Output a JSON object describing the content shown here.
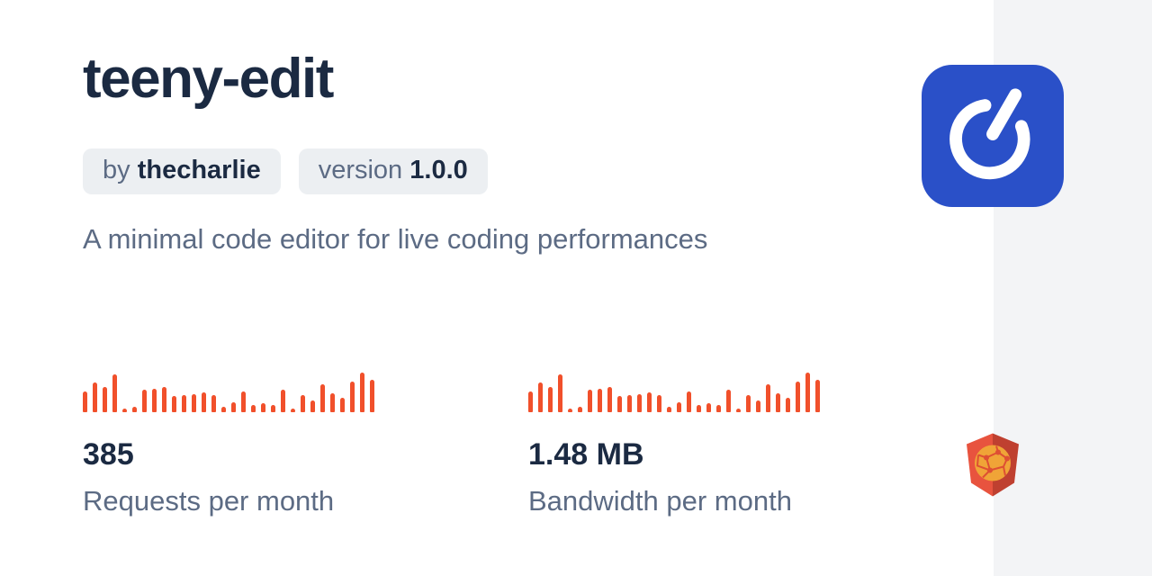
{
  "page": {
    "background": "#ffffff",
    "side_strip_color": "#f3f4f6",
    "text_dark": "#1b2a42",
    "text_muted": "#5c6b84",
    "badge_bg": "#eceff2",
    "bar_color": "#f1502b",
    "logo_blue": "#2a50c8",
    "shield_left": "#e8533e",
    "shield_right": "#bf4030",
    "globe_color": "#f0a437"
  },
  "header": {
    "title": "teeny-edit",
    "author_prefix": "by",
    "author_name": "thecharlie",
    "version_prefix": "version",
    "version_value": "1.0.0",
    "description": "A minimal code editor for live coding performances"
  },
  "stats": [
    {
      "value": "385",
      "label": "Requests per month"
    },
    {
      "value": "1.48 MB",
      "label": "Bandwidth per month"
    }
  ],
  "icons": {
    "avatar": "power-button-icon",
    "brand": "jsdelivr-shield-icon"
  },
  "chart_data": [
    {
      "type": "bar",
      "title": "Requests per month sparkline",
      "headline_value": "385",
      "color": "#f1502b",
      "ylim": [
        0,
        100
      ],
      "axes": "none",
      "grid": false,
      "values": [
        52,
        74,
        63,
        95,
        9,
        13,
        56,
        59,
        63,
        41,
        44,
        46,
        50,
        43,
        13,
        26,
        52,
        19,
        22,
        19,
        56,
        9,
        44,
        30,
        70,
        48,
        37,
        78,
        100,
        81
      ]
    },
    {
      "type": "bar",
      "title": "Bandwidth per month sparkline",
      "headline_value": "1.48 MB",
      "color": "#f1502b",
      "ylim": [
        0,
        100
      ],
      "axes": "none",
      "grid": false,
      "values": [
        52,
        74,
        63,
        95,
        9,
        13,
        56,
        59,
        63,
        41,
        44,
        46,
        50,
        43,
        13,
        26,
        52,
        19,
        22,
        19,
        56,
        9,
        44,
        30,
        70,
        48,
        37,
        78,
        100,
        81
      ]
    }
  ]
}
